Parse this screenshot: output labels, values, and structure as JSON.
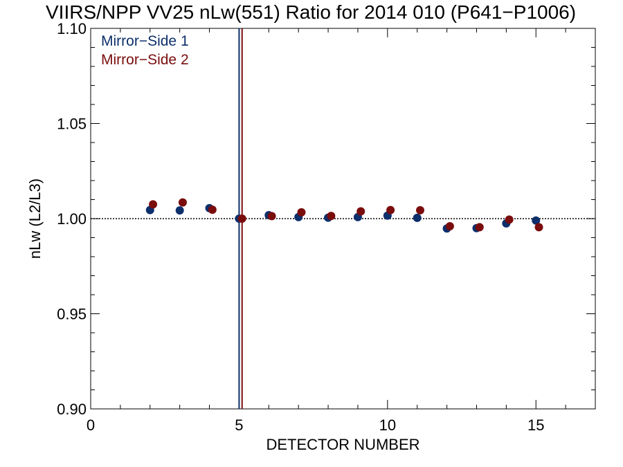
{
  "chart_data": {
    "type": "scatter",
    "title": "VIIRS/NPP VV25 nLw(551) Ratio for 2014 010 (P641−P1006)",
    "xlabel": "DETECTOR NUMBER",
    "ylabel": "nLw (L2/L3)",
    "xlim": [
      0,
      17
    ],
    "ylim": [
      0.9,
      1.1
    ],
    "x_ticks": [
      0,
      5,
      10,
      15
    ],
    "x_tick_labels": [
      "0",
      "5",
      "10",
      "15"
    ],
    "y_ticks": [
      0.9,
      0.95,
      1.0,
      1.05,
      1.1
    ],
    "y_tick_labels": [
      "0.90",
      "0.95",
      "1.00",
      "1.05",
      "1.10"
    ],
    "x_minor_step": 1,
    "y_minor_step": 0.01,
    "reference_line": {
      "y": 1.0,
      "style": "dotted",
      "color": "#000000"
    },
    "vertical_lines": [
      {
        "x": 5.0,
        "color": "#0d2f6b"
      },
      {
        "x": 5.1,
        "color": "#7a0c0c"
      }
    ],
    "legend_position": "top-left",
    "grid": false,
    "series": [
      {
        "name": "Mirror−Side 1",
        "color": "#0d2f6b",
        "x": [
          2,
          3,
          4,
          5,
          6,
          7,
          8,
          9,
          10,
          11,
          12,
          13,
          14,
          15
        ],
        "y": [
          1.0045,
          1.0043,
          1.0055,
          1.0,
          1.0018,
          1.0008,
          1.0005,
          1.0008,
          1.0016,
          1.0004,
          0.9948,
          0.995,
          0.9975,
          0.999
        ]
      },
      {
        "name": "Mirror−Side 2",
        "color": "#7a0c0c",
        "x": [
          2.1,
          3.1,
          4.1,
          5.1,
          6.1,
          7.1,
          8.1,
          9.1,
          10.1,
          11.1,
          12.1,
          13.1,
          14.1,
          15.1
        ],
        "y": [
          1.0075,
          1.0085,
          1.0047,
          1.0,
          1.0013,
          1.0033,
          1.0014,
          1.0038,
          1.0045,
          1.0044,
          0.996,
          0.9955,
          0.9995,
          0.9955
        ]
      }
    ]
  }
}
